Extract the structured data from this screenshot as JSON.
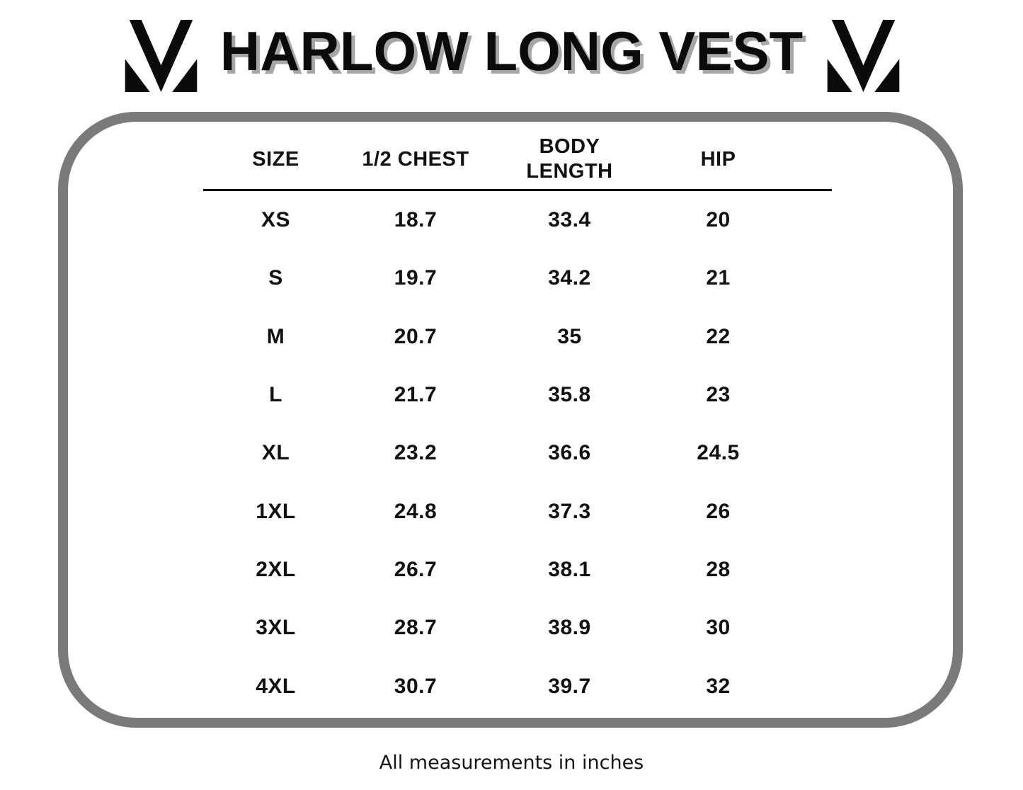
{
  "title": "HARLOW LONG VEST",
  "brand": {
    "logo_icon": "m-monogram-icon",
    "logo_color": "#0b0b0b"
  },
  "colors": {
    "background": "#ffffff",
    "text": "#111111",
    "title_shadow": "#a6a6a6",
    "card_border_gray": "#7a7a7a"
  },
  "footer": {
    "note": "All measurements in inches"
  },
  "chart_data": {
    "type": "table",
    "title": "HARLOW LONG VEST",
    "columns": [
      "SIZE",
      "1/2 CHEST",
      "BODY LENGTH",
      "HIP"
    ],
    "rows": [
      [
        "XS",
        "18.7",
        "33.4",
        "20"
      ],
      [
        "S",
        "19.7",
        "34.2",
        "21"
      ],
      [
        "M",
        "20.7",
        "35",
        "22"
      ],
      [
        "L",
        "21.7",
        "35.8",
        "23"
      ],
      [
        "XL",
        "23.2",
        "36.6",
        "24.5"
      ],
      [
        "1XL",
        "24.8",
        "37.3",
        "26"
      ],
      [
        "2XL",
        "26.7",
        "38.1",
        "28"
      ],
      [
        "3XL",
        "28.7",
        "38.9",
        "30"
      ],
      [
        "4XL",
        "30.7",
        "39.7",
        "32"
      ]
    ],
    "units_note": "All measurements in inches"
  }
}
